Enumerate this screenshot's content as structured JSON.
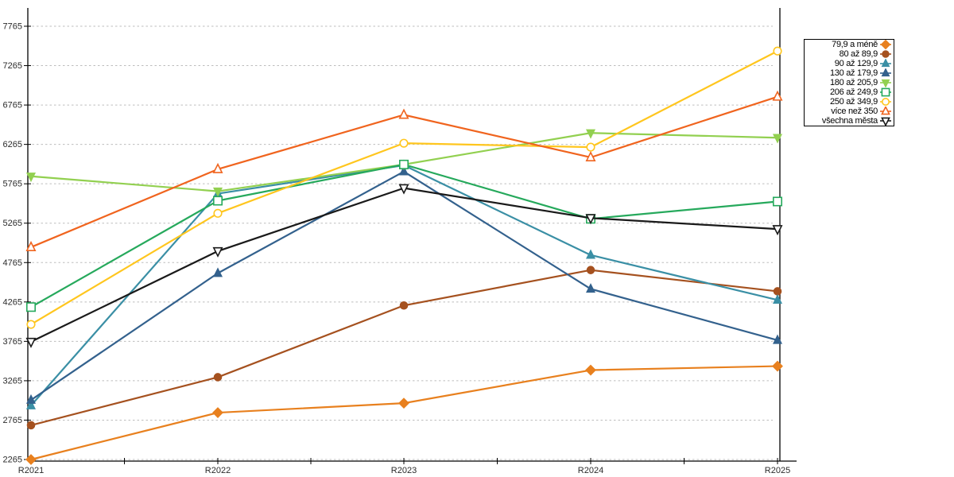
{
  "chart_data": {
    "type": "line",
    "title": "",
    "xlabel": "",
    "ylabel": "",
    "categories": [
      "R2021",
      "R2022",
      "R2023",
      "R2024",
      "R2025"
    ],
    "y_ticks": [
      2265,
      2765,
      3265,
      3765,
      4265,
      4765,
      5265,
      5765,
      6265,
      6765,
      7265,
      7765
    ],
    "ylim": [
      2265,
      7765
    ],
    "grid": "horizontal-dashed",
    "legend_position": "top-right-outside",
    "series": [
      {
        "name": "79,9 a méně",
        "color": "#E8801E",
        "marker": "diamond",
        "marker_fill": "filled",
        "values": [
          2265,
          2860,
          2980,
          3400,
          3450
        ]
      },
      {
        "name": "80 až 89,9",
        "color": "#A5511F",
        "marker": "circle",
        "marker_fill": "filled",
        "values": [
          2700,
          3310,
          4220,
          4670,
          4400
        ]
      },
      {
        "name": "90 až 129,9",
        "color": "#3A8FA5",
        "marker": "triangle-up",
        "marker_fill": "filled",
        "values": [
          2950,
          5640,
          6000,
          4860,
          4290
        ]
      },
      {
        "name": "130 až 179,9",
        "color": "#33618D",
        "marker": "triangle-up",
        "marker_fill": "filled",
        "values": [
          3020,
          4630,
          5920,
          4430,
          3780
        ]
      },
      {
        "name": "180 až 205,9",
        "color": "#92D050",
        "marker": "triangle-down",
        "marker_fill": "filled",
        "values": [
          5860,
          5670,
          6010,
          6410,
          6350
        ]
      },
      {
        "name": "206 až 249,9",
        "color": "#26A95C",
        "marker": "square",
        "marker_fill": "open",
        "values": [
          4200,
          5550,
          6010,
          5320,
          5540
        ]
      },
      {
        "name": "250 až 349,9",
        "color": "#FFC61E",
        "marker": "circle",
        "marker_fill": "open",
        "values": [
          3980,
          5390,
          6280,
          6230,
          7450
        ]
      },
      {
        "name": "více než 350",
        "color": "#F0641E",
        "marker": "triangle-up",
        "marker_fill": "open",
        "values": [
          4960,
          5950,
          6640,
          6100,
          6870
        ]
      },
      {
        "name": "všechna města",
        "color": "#1A1A1A",
        "marker": "triangle-down",
        "marker_fill": "open",
        "values": [
          3760,
          4910,
          5710,
          5330,
          5190
        ]
      }
    ]
  },
  "colors": {
    "grid": "#bdbdbd",
    "axis": "#000000",
    "tick_label": "#2b2b2b"
  }
}
